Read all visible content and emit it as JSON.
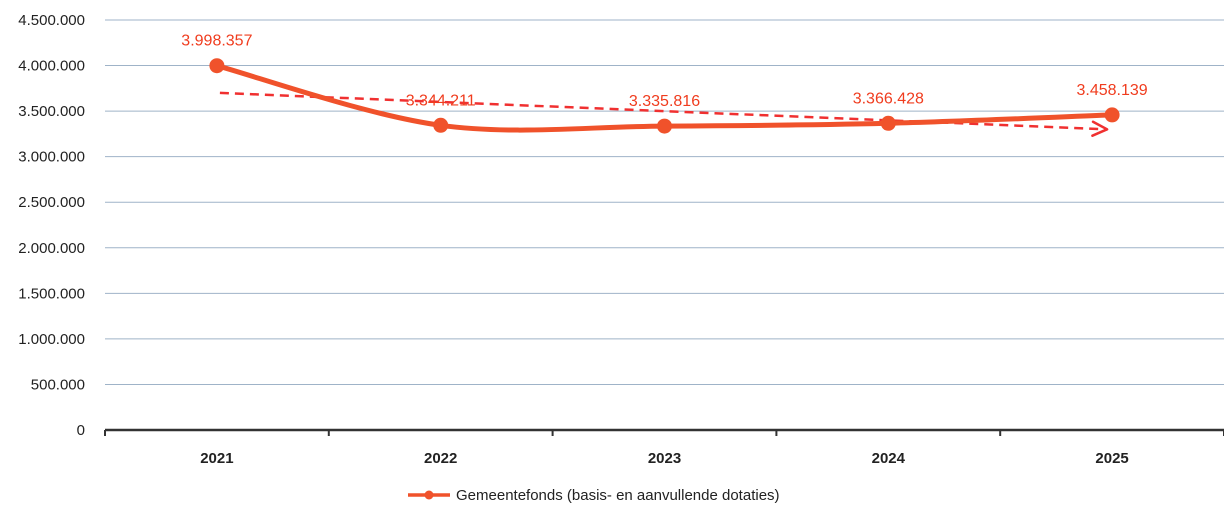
{
  "chart_data": {
    "type": "line",
    "categories": [
      "2021",
      "2022",
      "2023",
      "2024",
      "2025"
    ],
    "series": [
      {
        "name": "Gemeentefonds (basis- en aanvullende dotaties)",
        "values": [
          3998357,
          3344211,
          3335816,
          3366428,
          3458139
        ],
        "color": "#f0522b"
      }
    ],
    "data_labels": [
      "3.998.357",
      "3.344.211",
      "3.335.816",
      "3.366.428",
      "3.458.139"
    ],
    "trendline": {
      "style": "dashed-arrow",
      "color": "#f03030",
      "start": 3700000,
      "end": 3300000
    },
    "y_tick_labels": [
      "0",
      "500.000",
      "1.000.000",
      "1.500.000",
      "2.000.000",
      "2.500.000",
      "3.000.000",
      "3.500.000",
      "4.000.000",
      "4.500.000"
    ],
    "ylim": [
      0,
      4500000
    ],
    "grid": true,
    "gridline_color": "#9fb3c8",
    "axis_color": "#333333",
    "label_color": "#f03c1e",
    "legend_position": "bottom-center",
    "title": "",
    "xlabel": "",
    "ylabel": ""
  }
}
